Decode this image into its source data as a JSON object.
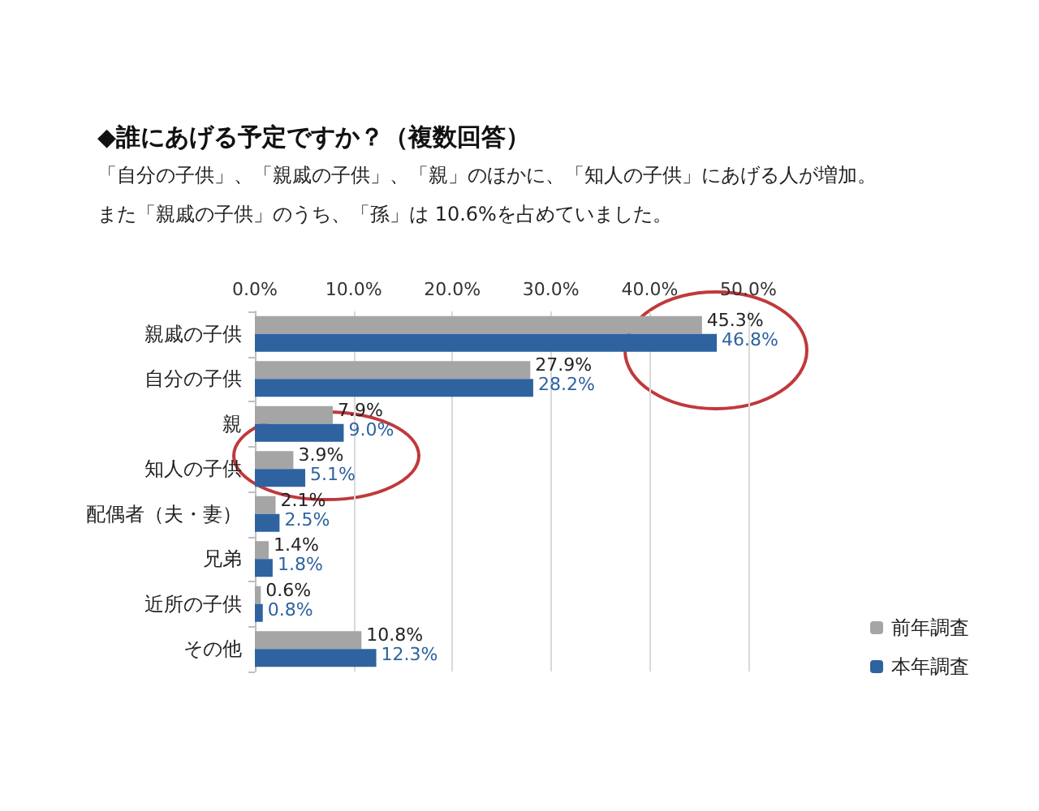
{
  "chart_data": {
    "type": "bar",
    "orientation": "horizontal",
    "title": "◆誰にあげる予定ですか？（複数回答）",
    "subtitle": "「自分の子供」、「親戚の子供」、「親」のほかに、「知人の子供」にあげる人が増加。",
    "annotations": [
      "また「親戚の子供」のうち、「孫」は 10.6%を占めていました。"
    ],
    "categories": [
      "親戚の子供",
      "自分の子供",
      "親",
      "知人の子供",
      "配偶者（夫・妻）",
      "兄弟",
      "近所の子供",
      "その他"
    ],
    "series": [
      {
        "name": "前年調査",
        "color": "#a5a5a5",
        "values": [
          45.3,
          27.9,
          7.9,
          3.9,
          2.1,
          1.4,
          0.6,
          10.8
        ],
        "value_labels": [
          "45.3%",
          "27.9%",
          "7.9%",
          "3.9%",
          "2.1%",
          "1.4%",
          "0.6%",
          "10.8%"
        ]
      },
      {
        "name": "本年調査",
        "color": "#2e63a0",
        "values": [
          46.8,
          28.2,
          9.0,
          5.1,
          2.5,
          1.8,
          0.8,
          12.3
        ],
        "value_labels": [
          "46.8%",
          "28.2%",
          "9.0%",
          "5.1%",
          "2.5%",
          "1.8%",
          "0.8%",
          "12.3%"
        ]
      }
    ],
    "xlim": [
      0,
      50
    ],
    "xticks": [
      {
        "value": 0,
        "label": "0.0%"
      },
      {
        "value": 10,
        "label": "10.0%"
      },
      {
        "value": 20,
        "label": "20.0%"
      },
      {
        "value": 30,
        "label": "30.0%"
      },
      {
        "value": 40,
        "label": "40.0%"
      },
      {
        "value": 50,
        "label": "50.0%"
      }
    ],
    "grid": "x",
    "legend": "bottom right"
  }
}
